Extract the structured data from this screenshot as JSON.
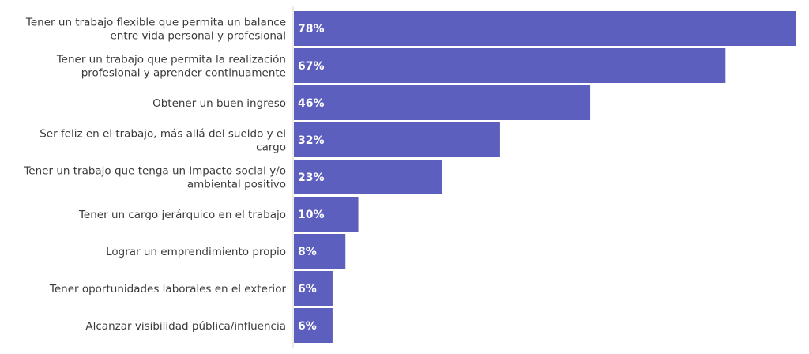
{
  "colors": {
    "bar": "#5c5fbe",
    "value_text": "#ffffff",
    "category_text": "#3a3a3a",
    "axis": "#d8d8d8"
  },
  "chart_data": {
    "type": "bar",
    "orientation": "horizontal",
    "categories": [
      [
        "Tener un trabajo flexible que permita un balance",
        "entre vida personal y profesional"
      ],
      [
        "Tener un trabajo que permita la realización",
        "profesional y aprender continuamente"
      ],
      [
        "Obtener un buen ingreso"
      ],
      [
        "Ser feliz en el trabajo, más allá del sueldo y el",
        "cargo"
      ],
      [
        "Tener un trabajo que tenga un impacto social y/o",
        "ambiental positivo"
      ],
      [
        "Tener un cargo jerárquico en el trabajo"
      ],
      [
        "Lograr un emprendimiento propio"
      ],
      [
        "Tener oportunidades laborales en el exterior"
      ],
      [
        "Alcanzar visibilidad pública/influencia"
      ]
    ],
    "values": [
      78,
      67,
      46,
      32,
      23,
      10,
      8,
      6,
      6
    ],
    "value_labels": [
      "78%",
      "67%",
      "46%",
      "32%",
      "23%",
      "10%",
      "8%",
      "6%",
      "6%"
    ],
    "xlim": [
      0,
      78
    ],
    "grid": false,
    "legend": "none"
  }
}
